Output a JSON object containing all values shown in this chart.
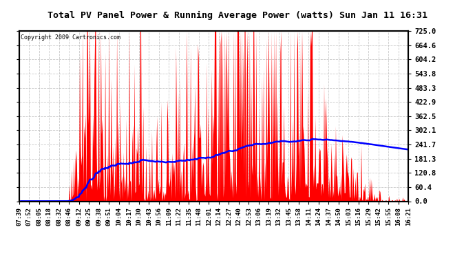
{
  "title": "Total PV Panel Power & Running Average Power (watts) Sun Jan 11 16:31",
  "copyright": "Copyright 2009 Cartronics.com",
  "yticks": [
    0.0,
    60.4,
    120.8,
    181.3,
    241.7,
    302.1,
    362.5,
    422.9,
    483.3,
    543.8,
    604.2,
    664.6,
    725.0
  ],
  "ymax": 725.0,
  "ymin": 0.0,
  "bg_color": "#ffffff",
  "plot_bg_color": "#ffffff",
  "fill_color": "#ff0000",
  "avg_line_color": "#0000ff",
  "grid_color": "#bbbbbb",
  "title_bg": "#c0c0c0",
  "xtick_labels": [
    "07:39",
    "07:52",
    "08:05",
    "08:18",
    "08:32",
    "08:46",
    "09:12",
    "09:25",
    "09:38",
    "09:51",
    "10:04",
    "10:17",
    "10:30",
    "10:43",
    "10:56",
    "11:09",
    "11:22",
    "11:35",
    "11:48",
    "12:01",
    "12:14",
    "12:27",
    "12:40",
    "12:53",
    "13:06",
    "13:19",
    "13:32",
    "13:45",
    "13:58",
    "14:11",
    "14:24",
    "14:37",
    "14:50",
    "15:03",
    "15:16",
    "15:29",
    "15:42",
    "15:55",
    "16:08",
    "16:21"
  ]
}
